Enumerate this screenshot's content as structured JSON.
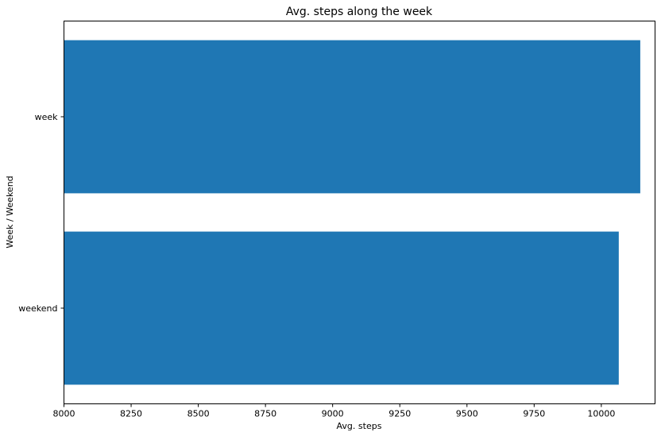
{
  "chart_data": {
    "type": "bar",
    "orientation": "horizontal",
    "title": "Avg. steps along the week",
    "xlabel": "Avg. steps",
    "ylabel": "Week / Weekend",
    "categories": [
      "week",
      "weekend"
    ],
    "values": [
      10145,
      10065
    ],
    "xlim": [
      8000,
      10200
    ],
    "xticks": [
      8000,
      8250,
      8500,
      8750,
      9000,
      9250,
      9500,
      9750,
      10000
    ],
    "bar_color": "#1f77b4",
    "grid": false,
    "legend": "none"
  }
}
